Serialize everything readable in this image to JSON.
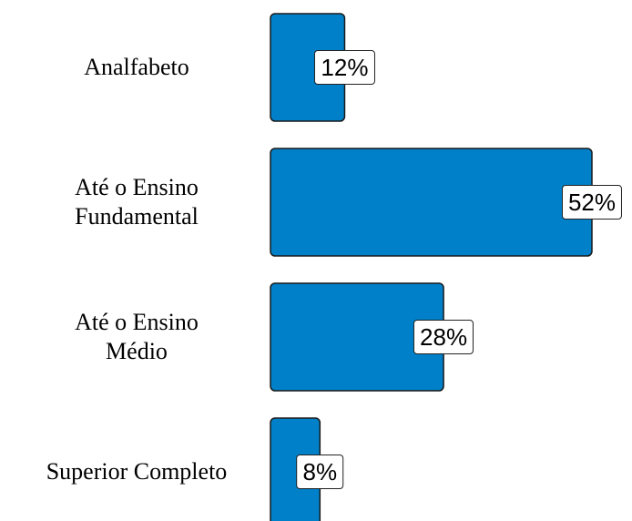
{
  "chart_data": {
    "type": "bar",
    "orientation": "horizontal",
    "categories": [
      "Analfabeto",
      "Até o Ensino\nFundamental",
      "Até o Ensino\nMédio",
      "Superior Completo"
    ],
    "values": [
      12,
      52,
      28,
      8
    ],
    "value_labels": [
      "12%",
      "52%",
      "28%",
      "8%"
    ],
    "color": "#0080c8"
  }
}
